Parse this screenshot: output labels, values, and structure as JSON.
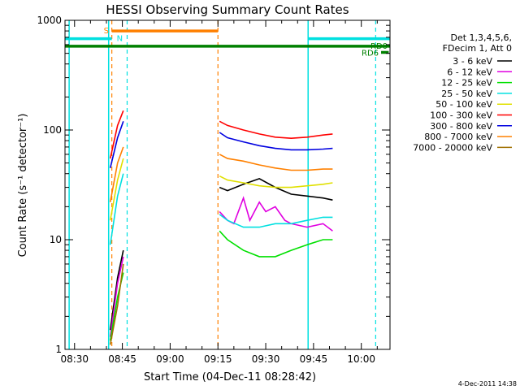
{
  "chart_data": {
    "type": "line",
    "title": "HESSI Observing Summary Count Rates",
    "xlabel": "Start Time (04-Dec-11 08:28:42)",
    "ylabel": "Count Rate (s⁻¹ detector⁻¹)",
    "ylog": true,
    "ylim": [
      1,
      1000
    ],
    "xlim_minutes_after_0828": [
      -1,
      101
    ],
    "x_ticks": [
      "08:30",
      "08:45",
      "09:00",
      "09:15",
      "09:30",
      "09:45",
      "10:00"
    ],
    "x_tick_minutes": [
      2,
      17,
      32,
      47,
      62,
      77,
      92
    ],
    "y_ticks": [
      "1",
      "10",
      "100",
      "1000"
    ],
    "y_tick_values": [
      1,
      10,
      100,
      1000
    ],
    "legend": {
      "header": [
        "Det 1,3,4,5,6,",
        "FDecim 1, Att 0"
      ],
      "placement": "right"
    },
    "series": [
      {
        "name": "3 - 6 keV",
        "color": "#000000",
        "seg1": {
          "x": [
            13.2,
            15.5,
            17.3
          ],
          "y": [
            1.5,
            4.5,
            8
          ]
        },
        "seg2": {
          "x": [
            47.5,
            50,
            55,
            60,
            65,
            70,
            75,
            80,
            83
          ],
          "y": [
            30,
            28,
            32,
            36,
            30,
            26,
            25,
            24,
            23
          ]
        }
      },
      {
        "name": "6 - 12 keV",
        "color": "#e000e0",
        "seg1": {
          "x": [
            13.2,
            15.5,
            17.3
          ],
          "y": [
            1.3,
            4,
            7
          ]
        },
        "seg2": {
          "x": [
            47.5,
            50,
            52,
            55,
            57,
            60,
            62,
            65,
            68,
            70,
            75,
            80,
            83
          ],
          "y": [
            18,
            15,
            14,
            24,
            15,
            22,
            18,
            20,
            15,
            14,
            13,
            14,
            12
          ]
        }
      },
      {
        "name": "12 - 25 keV",
        "color": "#00e000",
        "seg1": {
          "x": [
            13.2,
            15.5,
            17.3
          ],
          "y": [
            1.2,
            3,
            5
          ]
        },
        "seg2": {
          "x": [
            47.5,
            50,
            55,
            60,
            65,
            70,
            75,
            80,
            83
          ],
          "y": [
            12,
            10,
            8,
            7,
            7,
            8,
            9,
            10,
            10
          ]
        }
      },
      {
        "name": "25 - 50 keV",
        "color": "#00e0e0",
        "seg1": {
          "x": [
            13.2,
            15.5,
            17.3
          ],
          "y": [
            9,
            25,
            40
          ]
        },
        "seg2": {
          "x": [
            47.5,
            50,
            55,
            60,
            65,
            70,
            75,
            80,
            83
          ],
          "y": [
            17,
            15,
            13,
            13,
            14,
            14,
            15,
            16,
            16
          ]
        }
      },
      {
        "name": "50 - 100 keV",
        "color": "#e0e000",
        "seg1": {
          "x": [
            13.2,
            15.5,
            17.3
          ],
          "y": [
            15,
            35,
            55
          ]
        },
        "seg2": {
          "x": [
            47.5,
            50,
            55,
            60,
            65,
            70,
            75,
            80,
            83
          ],
          "y": [
            38,
            35,
            33,
            31,
            30,
            30,
            31,
            32,
            33
          ]
        }
      },
      {
        "name": "100 - 300 keV",
        "color": "#ff0000",
        "seg1": {
          "x": [
            13.2,
            15.5,
            17.3
          ],
          "y": [
            55,
            110,
            150
          ]
        },
        "seg2": {
          "x": [
            47.5,
            50,
            55,
            60,
            65,
            70,
            75,
            80,
            83
          ],
          "y": [
            120,
            110,
            100,
            92,
            86,
            84,
            86,
            90,
            92
          ]
        }
      },
      {
        "name": "300 - 800 keV",
        "color": "#0000e0",
        "seg1": {
          "x": [
            13.2,
            15.5,
            17.3
          ],
          "y": [
            45,
            85,
            120
          ]
        },
        "seg2": {
          "x": [
            47.5,
            50,
            55,
            60,
            65,
            70,
            75,
            80,
            83
          ],
          "y": [
            95,
            85,
            78,
            72,
            68,
            66,
            66,
            67,
            68
          ]
        }
      },
      {
        "name": "800 - 7000 keV",
        "color": "#ff8000",
        "seg1": {
          "x": [
            13.2,
            15.5,
            17.3
          ],
          "y": [
            22,
            50,
            70
          ]
        },
        "seg2": {
          "x": [
            47.5,
            50,
            55,
            60,
            65,
            70,
            75,
            80,
            83
          ],
          "y": [
            60,
            55,
            52,
            48,
            45,
            43,
            43,
            44,
            44
          ]
        }
      },
      {
        "name": "7000 - 20000 keV",
        "color": "#a07000",
        "seg1": {
          "x": [
            13.2,
            15.5,
            17.3
          ],
          "y": [
            1.1,
            2.5,
            6
          ]
        },
        "seg2": null
      }
    ],
    "annotations": {
      "flags": [
        {
          "label": "S",
          "color": "#ff8000",
          "x1": 13.7,
          "x2": 47.0,
          "y": 800
        },
        {
          "label": "N",
          "color": "#00e0e0",
          "x1": -1,
          "x2": 13.7,
          "y": 680
        },
        {
          "label": "",
          "color": "#00e0e0",
          "x1": 75.3,
          "x2": 101,
          "y": 680
        },
        {
          "label": "RD0",
          "color": "#008000",
          "x1": -1,
          "x2": 101,
          "y": 580
        },
        {
          "label": "RD6",
          "color": "#008000",
          "x1": 98.2,
          "x2": 100.6,
          "y": 510
        }
      ],
      "solid_vlines": [
        {
          "x": 0.3,
          "color": "#00e0e0"
        },
        {
          "x": 12.7,
          "color": "#00e0e0"
        },
        {
          "x": 75.3,
          "color": "#00e0e0"
        }
      ],
      "dashed_vlines": [
        {
          "x": 18.5,
          "color": "#00e0e0"
        },
        {
          "x": 96.5,
          "color": "#00e0e0"
        },
        {
          "x": 13.7,
          "color": "#ff8000"
        },
        {
          "x": 47.0,
          "color": "#ff8000"
        }
      ]
    },
    "footer": "4-Dec-2011 14:38"
  }
}
